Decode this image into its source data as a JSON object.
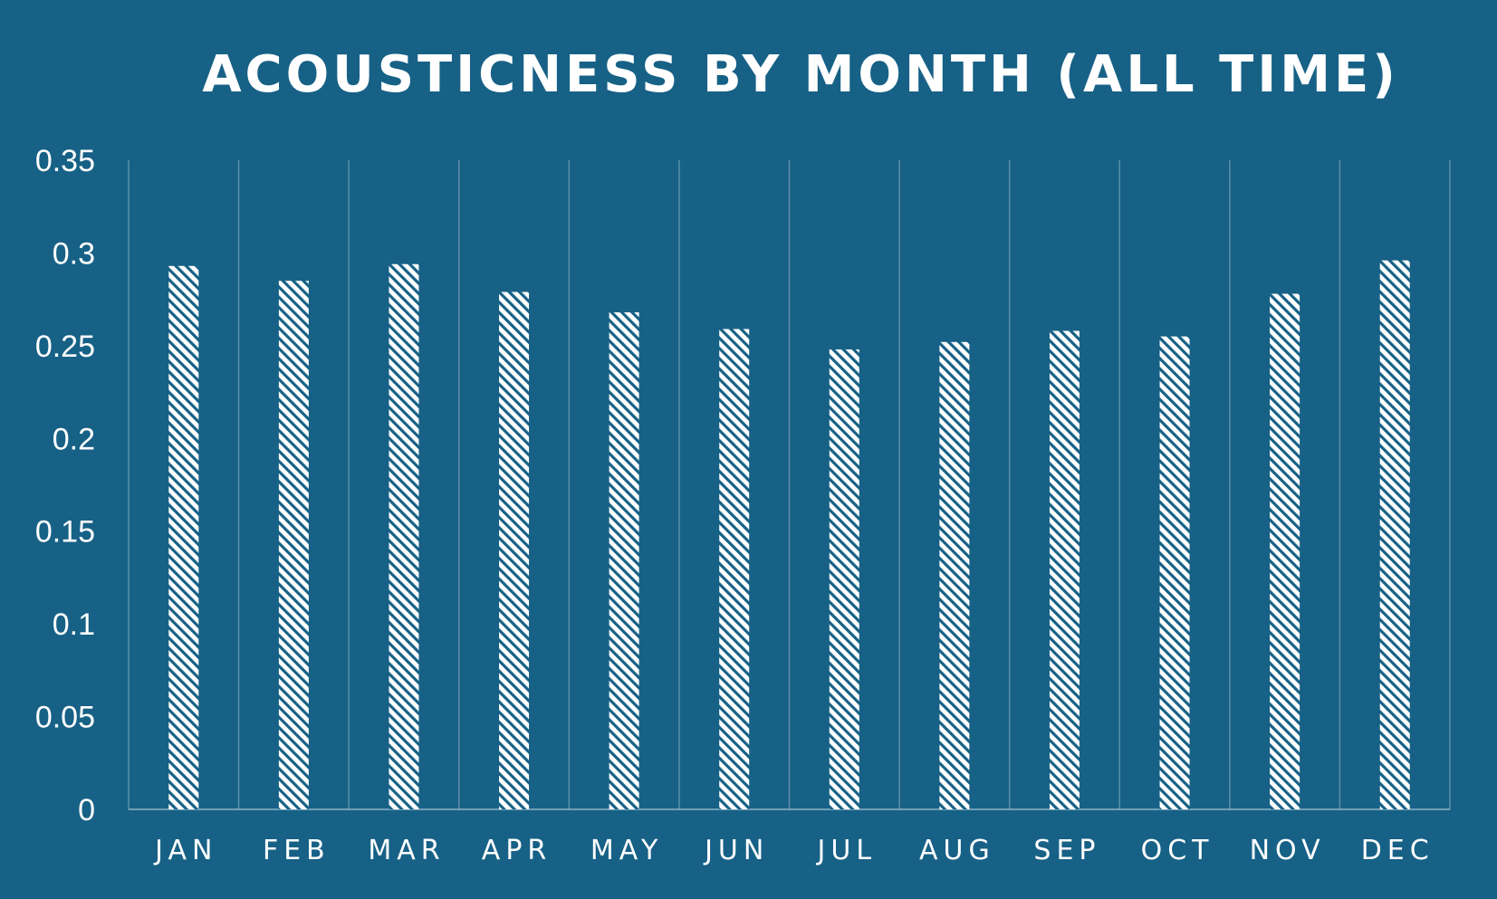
{
  "chart_data": {
    "type": "bar",
    "title": "ACOUSTICNESS BY MONTH (ALL TIME)",
    "xlabel": "",
    "ylabel": "",
    "categories": [
      "JAN",
      "FEB",
      "MAR",
      "APR",
      "MAY",
      "JUN",
      "JUL",
      "AUG",
      "SEP",
      "OCT",
      "NOV",
      "DEC"
    ],
    "values": [
      0.293,
      0.285,
      0.294,
      0.279,
      0.268,
      0.259,
      0.248,
      0.252,
      0.258,
      0.255,
      0.278,
      0.296
    ],
    "ylim": [
      0,
      0.35
    ],
    "yticks": [
      "0",
      "0.05",
      "0.1",
      "0.15",
      "0.2",
      "0.25",
      "0.3",
      "0.35"
    ],
    "grid": "vertical-category-separators",
    "legend": "none",
    "colors": {
      "background": "#176186",
      "bar_fill": "#ffffff",
      "bar_hatch": "#176186",
      "text": "#ffffff",
      "gridline": "#5b8fab"
    }
  }
}
